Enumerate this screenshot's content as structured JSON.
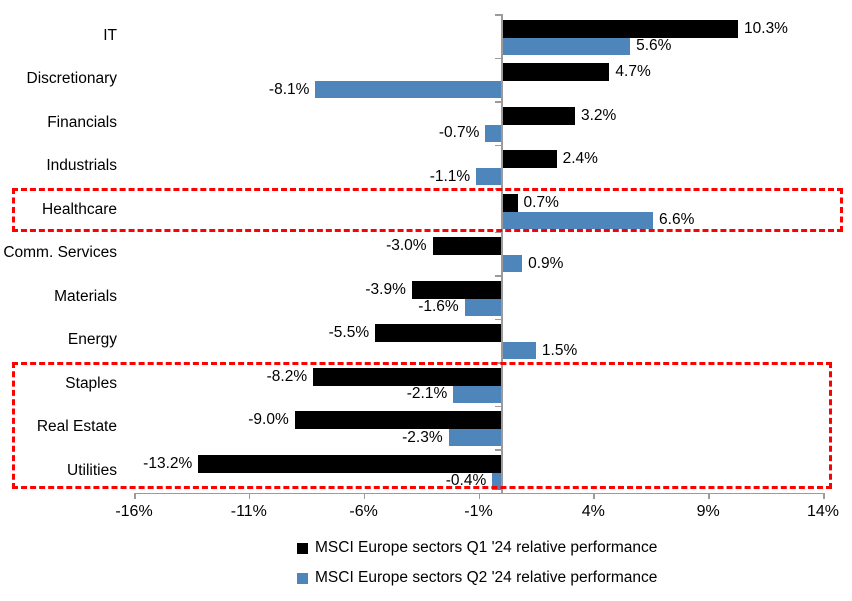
{
  "chart_data": {
    "type": "bar",
    "orientation": "horizontal",
    "categories": [
      "IT",
      "Discretionary",
      "Financials",
      "Industrials",
      "Healthcare",
      "Comm. Services",
      "Materials",
      "Energy",
      "Staples",
      "Real Estate",
      "Utilities"
    ],
    "series": [
      {
        "name": "MSCI Europe sectors Q1 '24 relative performance",
        "color": "#000000",
        "values": [
          10.3,
          4.7,
          3.2,
          2.4,
          0.7,
          -3.0,
          -3.9,
          -5.5,
          -8.2,
          -9.0,
          -13.2
        ],
        "labels": [
          "10.3%",
          "4.7%",
          "3.2%",
          "2.4%",
          "0.7%",
          "-3.0%",
          "-3.9%",
          "-5.5%",
          "-8.2%",
          "-9.0%",
          "-13.2%"
        ]
      },
      {
        "name": "MSCI Europe sectors Q2 '24 relative performance",
        "color": "#4e86bc",
        "values": [
          5.6,
          -8.1,
          -0.7,
          -1.1,
          6.6,
          0.9,
          -1.6,
          1.5,
          -2.1,
          -2.3,
          -0.4
        ],
        "labels": [
          "5.6%",
          "-8.1%",
          "-0.7%",
          "-1.1%",
          "6.6%",
          "0.9%",
          "-1.6%",
          "1.5%",
          "-2.1%",
          "-2.3%",
          "-0.4%"
        ]
      }
    ],
    "xlim": [
      -16,
      14
    ],
    "x_tick_values": [
      -16,
      -11,
      -6,
      -1,
      4,
      9,
      14
    ],
    "x_tick_labels": [
      "-16%",
      "-11%",
      "-6%",
      "-1%",
      "4%",
      "9%",
      "14%"
    ],
    "grid": "off",
    "legend_position": "bottom-center",
    "axis_color": "#9b9b9b",
    "highlight_color": "#ff0000",
    "highlight_boxes": [
      {
        "name": "healthcare-highlight",
        "start_category": "Healthcare",
        "end_category": "Healthcare"
      },
      {
        "name": "defensives-highlight",
        "start_category": "Staples",
        "end_category": "Utilities"
      }
    ]
  }
}
